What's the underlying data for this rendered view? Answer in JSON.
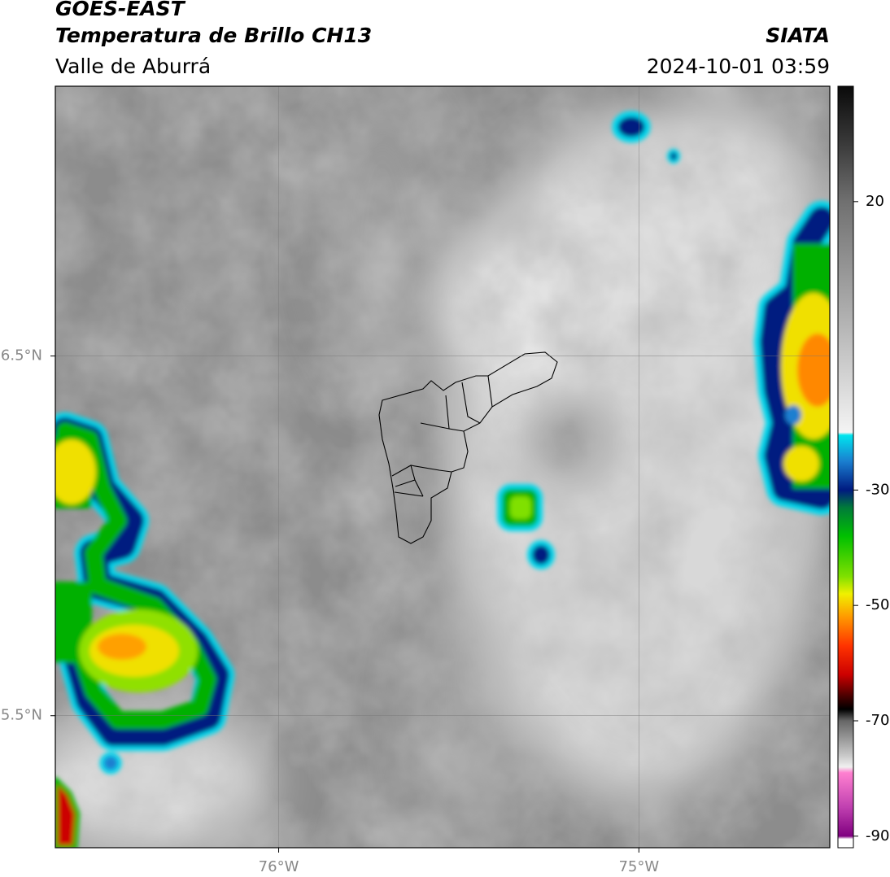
{
  "header": {
    "title": "GOES-EAST",
    "subtitle": "Temperatura de Brillo CH13",
    "region": "Valle de Aburrá",
    "source": "SIATA",
    "datetime": "2024-10-01 03:59"
  },
  "map": {
    "xlim": [
      -76.62,
      -74.47
    ],
    "ylim": [
      5.133,
      7.25
    ],
    "xticks": [
      {
        "value": -76,
        "label": "76°W"
      },
      {
        "value": -75,
        "label": "75°W"
      }
    ],
    "yticks": [
      {
        "value": 6.5,
        "label": "6.5°N"
      },
      {
        "value": 5.5,
        "label": "5.5°N"
      }
    ],
    "grid": true
  },
  "colorbar": {
    "lim": [
      -92,
      40
    ],
    "ticks": [
      20,
      -30,
      -50,
      -70,
      -90
    ],
    "colors": [
      [
        40,
        "#0a0a0a"
      ],
      [
        30,
        "#3a3a3a"
      ],
      [
        20,
        "#707070"
      ],
      [
        0,
        "#b0b0b0"
      ],
      [
        -20,
        "#f4f4f4"
      ],
      [
        -20.5,
        "#00e5ee"
      ],
      [
        -25,
        "#1a7fd0"
      ],
      [
        -30,
        "#001a80"
      ],
      [
        -33,
        "#007a3a"
      ],
      [
        -38,
        "#00c000"
      ],
      [
        -45,
        "#80e000"
      ],
      [
        -48,
        "#f0f000"
      ],
      [
        -52,
        "#ff9900"
      ],
      [
        -57,
        "#ff3300"
      ],
      [
        -62,
        "#cc0000"
      ],
      [
        -66,
        "#400000"
      ],
      [
        -68,
        "#000000"
      ],
      [
        -70,
        "#666666"
      ],
      [
        -76,
        "#c8c8c8"
      ],
      [
        -78,
        "#f0f0f0"
      ],
      [
        -79,
        "#ff80d0"
      ],
      [
        -85,
        "#c040b0"
      ],
      [
        -90,
        "#800080"
      ],
      [
        -90.5,
        "#ffffff"
      ],
      [
        -92,
        "#ffffff"
      ]
    ]
  }
}
